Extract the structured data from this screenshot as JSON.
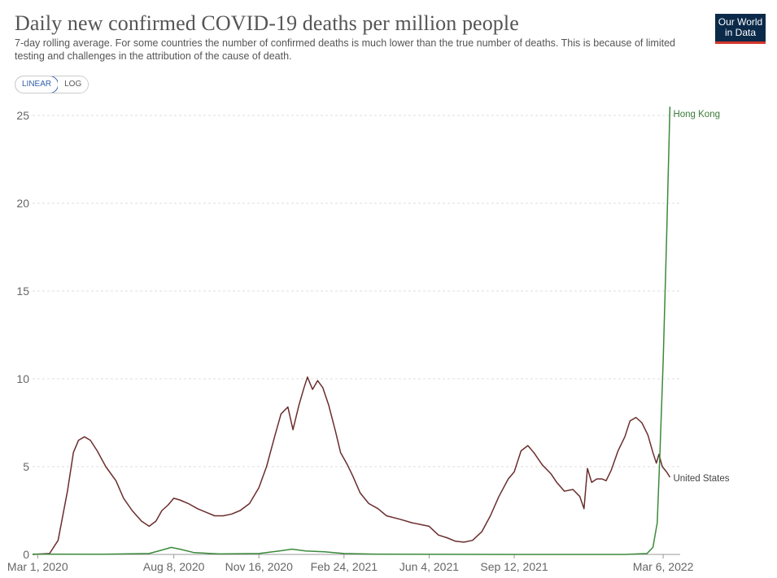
{
  "header": {
    "title": "Daily new confirmed COVID-19 deaths per million people",
    "subtitle": "7-day rolling average. For some countries the number of confirmed deaths is much lower than the true number of deaths. This is because of limited testing and challenges in the attribution of the cause of death.",
    "logo_line1": "Our World",
    "logo_line2": "in Data"
  },
  "controls": {
    "linear_label": "LINEAR",
    "log_label": "LOG",
    "active": "LINEAR"
  },
  "colors": {
    "united_states": "#6b2d2d",
    "hong_kong": "#3a8a3a",
    "grid": "#dddddd",
    "axis_text": "#666666"
  },
  "chart_data": {
    "type": "line",
    "title": "Daily new confirmed COVID-19 deaths per million people",
    "xlabel": "",
    "ylabel": "",
    "xlim": [
      "2020-02-24",
      "2022-03-26"
    ],
    "ylim": [
      0,
      25
    ],
    "yticks": [
      0,
      5,
      10,
      15,
      20,
      25
    ],
    "xticks": [
      "2020-03-01",
      "2020-08-08",
      "2020-11-16",
      "2021-02-24",
      "2021-06-04",
      "2021-09-12",
      "2022-03-06"
    ],
    "xtick_labels": [
      "Mar 1, 2020",
      "Aug 8, 2020",
      "Nov 16, 2020",
      "Feb 24, 2021",
      "Jun 4, 2021",
      "Sep 12, 2021",
      "Mar 6, 2022"
    ],
    "grid": true,
    "legend": "inline labels at line ends",
    "series": [
      {
        "name": "United States",
        "color": "#6b2d2d",
        "points": [
          [
            "2020-02-24",
            0
          ],
          [
            "2020-03-15",
            0.05
          ],
          [
            "2020-03-25",
            0.8
          ],
          [
            "2020-04-05",
            3.6
          ],
          [
            "2020-04-12",
            5.8
          ],
          [
            "2020-04-18",
            6.5
          ],
          [
            "2020-04-25",
            6.7
          ],
          [
            "2020-05-02",
            6.5
          ],
          [
            "2020-05-10",
            5.9
          ],
          [
            "2020-05-20",
            5.0
          ],
          [
            "2020-06-01",
            4.2
          ],
          [
            "2020-06-10",
            3.2
          ],
          [
            "2020-06-20",
            2.5
          ],
          [
            "2020-07-01",
            1.9
          ],
          [
            "2020-07-10",
            1.6
          ],
          [
            "2020-07-18",
            1.9
          ],
          [
            "2020-07-25",
            2.5
          ],
          [
            "2020-08-01",
            2.8
          ],
          [
            "2020-08-08",
            3.2
          ],
          [
            "2020-08-15",
            3.1
          ],
          [
            "2020-08-25",
            2.9
          ],
          [
            "2020-09-05",
            2.6
          ],
          [
            "2020-09-15",
            2.4
          ],
          [
            "2020-09-25",
            2.2
          ],
          [
            "2020-10-05",
            2.2
          ],
          [
            "2020-10-15",
            2.3
          ],
          [
            "2020-10-25",
            2.5
          ],
          [
            "2020-11-05",
            2.9
          ],
          [
            "2020-11-16",
            3.8
          ],
          [
            "2020-11-25",
            5.0
          ],
          [
            "2020-12-05",
            6.8
          ],
          [
            "2020-12-12",
            8.0
          ],
          [
            "2020-12-20",
            8.4
          ],
          [
            "2020-12-26",
            7.1
          ],
          [
            "2021-01-02",
            8.5
          ],
          [
            "2021-01-08",
            9.5
          ],
          [
            "2021-01-12",
            10.1
          ],
          [
            "2021-01-18",
            9.4
          ],
          [
            "2021-01-24",
            9.9
          ],
          [
            "2021-01-30",
            9.5
          ],
          [
            "2021-02-06",
            8.5
          ],
          [
            "2021-02-14",
            7.0
          ],
          [
            "2021-02-20",
            5.8
          ],
          [
            "2021-02-28",
            5.1
          ],
          [
            "2021-03-06",
            4.5
          ],
          [
            "2021-03-15",
            3.5
          ],
          [
            "2021-03-25",
            2.9
          ],
          [
            "2021-04-05",
            2.6
          ],
          [
            "2021-04-15",
            2.2
          ],
          [
            "2021-05-01",
            2.0
          ],
          [
            "2021-05-15",
            1.8
          ],
          [
            "2021-06-04",
            1.6
          ],
          [
            "2021-06-15",
            1.1
          ],
          [
            "2021-06-25",
            0.95
          ],
          [
            "2021-07-05",
            0.75
          ],
          [
            "2021-07-15",
            0.7
          ],
          [
            "2021-07-25",
            0.8
          ],
          [
            "2021-08-05",
            1.3
          ],
          [
            "2021-08-15",
            2.2
          ],
          [
            "2021-08-25",
            3.3
          ],
          [
            "2021-09-05",
            4.3
          ],
          [
            "2021-09-12",
            4.7
          ],
          [
            "2021-09-20",
            5.9
          ],
          [
            "2021-09-28",
            6.2
          ],
          [
            "2021-10-05",
            5.8
          ],
          [
            "2021-10-15",
            5.1
          ],
          [
            "2021-10-25",
            4.6
          ],
          [
            "2021-11-01",
            4.1
          ],
          [
            "2021-11-10",
            3.6
          ],
          [
            "2021-11-20",
            3.7
          ],
          [
            "2021-11-28",
            3.3
          ],
          [
            "2021-12-03",
            2.6
          ],
          [
            "2021-12-07",
            4.9
          ],
          [
            "2021-12-12",
            4.1
          ],
          [
            "2021-12-18",
            4.3
          ],
          [
            "2021-12-24",
            4.3
          ],
          [
            "2021-12-29",
            4.2
          ],
          [
            "2022-01-04",
            4.8
          ],
          [
            "2022-01-12",
            5.9
          ],
          [
            "2022-01-20",
            6.7
          ],
          [
            "2022-01-26",
            7.6
          ],
          [
            "2022-02-02",
            7.8
          ],
          [
            "2022-02-09",
            7.5
          ],
          [
            "2022-02-16",
            6.8
          ],
          [
            "2022-02-22",
            5.8
          ],
          [
            "2022-02-26",
            5.2
          ],
          [
            "2022-03-01",
            5.7
          ],
          [
            "2022-03-05",
            5.0
          ],
          [
            "2022-03-10",
            4.7
          ],
          [
            "2022-03-14",
            4.4
          ]
        ]
      },
      {
        "name": "Hong Kong",
        "color": "#3a8a3a",
        "points": [
          [
            "2020-02-24",
            0.02
          ],
          [
            "2020-05-15",
            0.01
          ],
          [
            "2020-07-10",
            0.05
          ],
          [
            "2020-07-25",
            0.25
          ],
          [
            "2020-08-05",
            0.4
          ],
          [
            "2020-08-15",
            0.3
          ],
          [
            "2020-09-01",
            0.1
          ],
          [
            "2020-10-01",
            0.03
          ],
          [
            "2020-11-16",
            0.05
          ],
          [
            "2020-12-10",
            0.2
          ],
          [
            "2020-12-25",
            0.3
          ],
          [
            "2021-01-10",
            0.2
          ],
          [
            "2021-02-01",
            0.15
          ],
          [
            "2021-02-24",
            0.05
          ],
          [
            "2021-04-01",
            0.02
          ],
          [
            "2021-09-01",
            0.0
          ],
          [
            "2022-01-20",
            0.0
          ],
          [
            "2022-02-15",
            0.05
          ],
          [
            "2022-02-22",
            0.4
          ],
          [
            "2022-02-27",
            1.8
          ],
          [
            "2022-03-02",
            5.5
          ],
          [
            "2022-03-06",
            11.0
          ],
          [
            "2022-03-10",
            18.0
          ],
          [
            "2022-03-14",
            25.5
          ]
        ]
      }
    ]
  }
}
